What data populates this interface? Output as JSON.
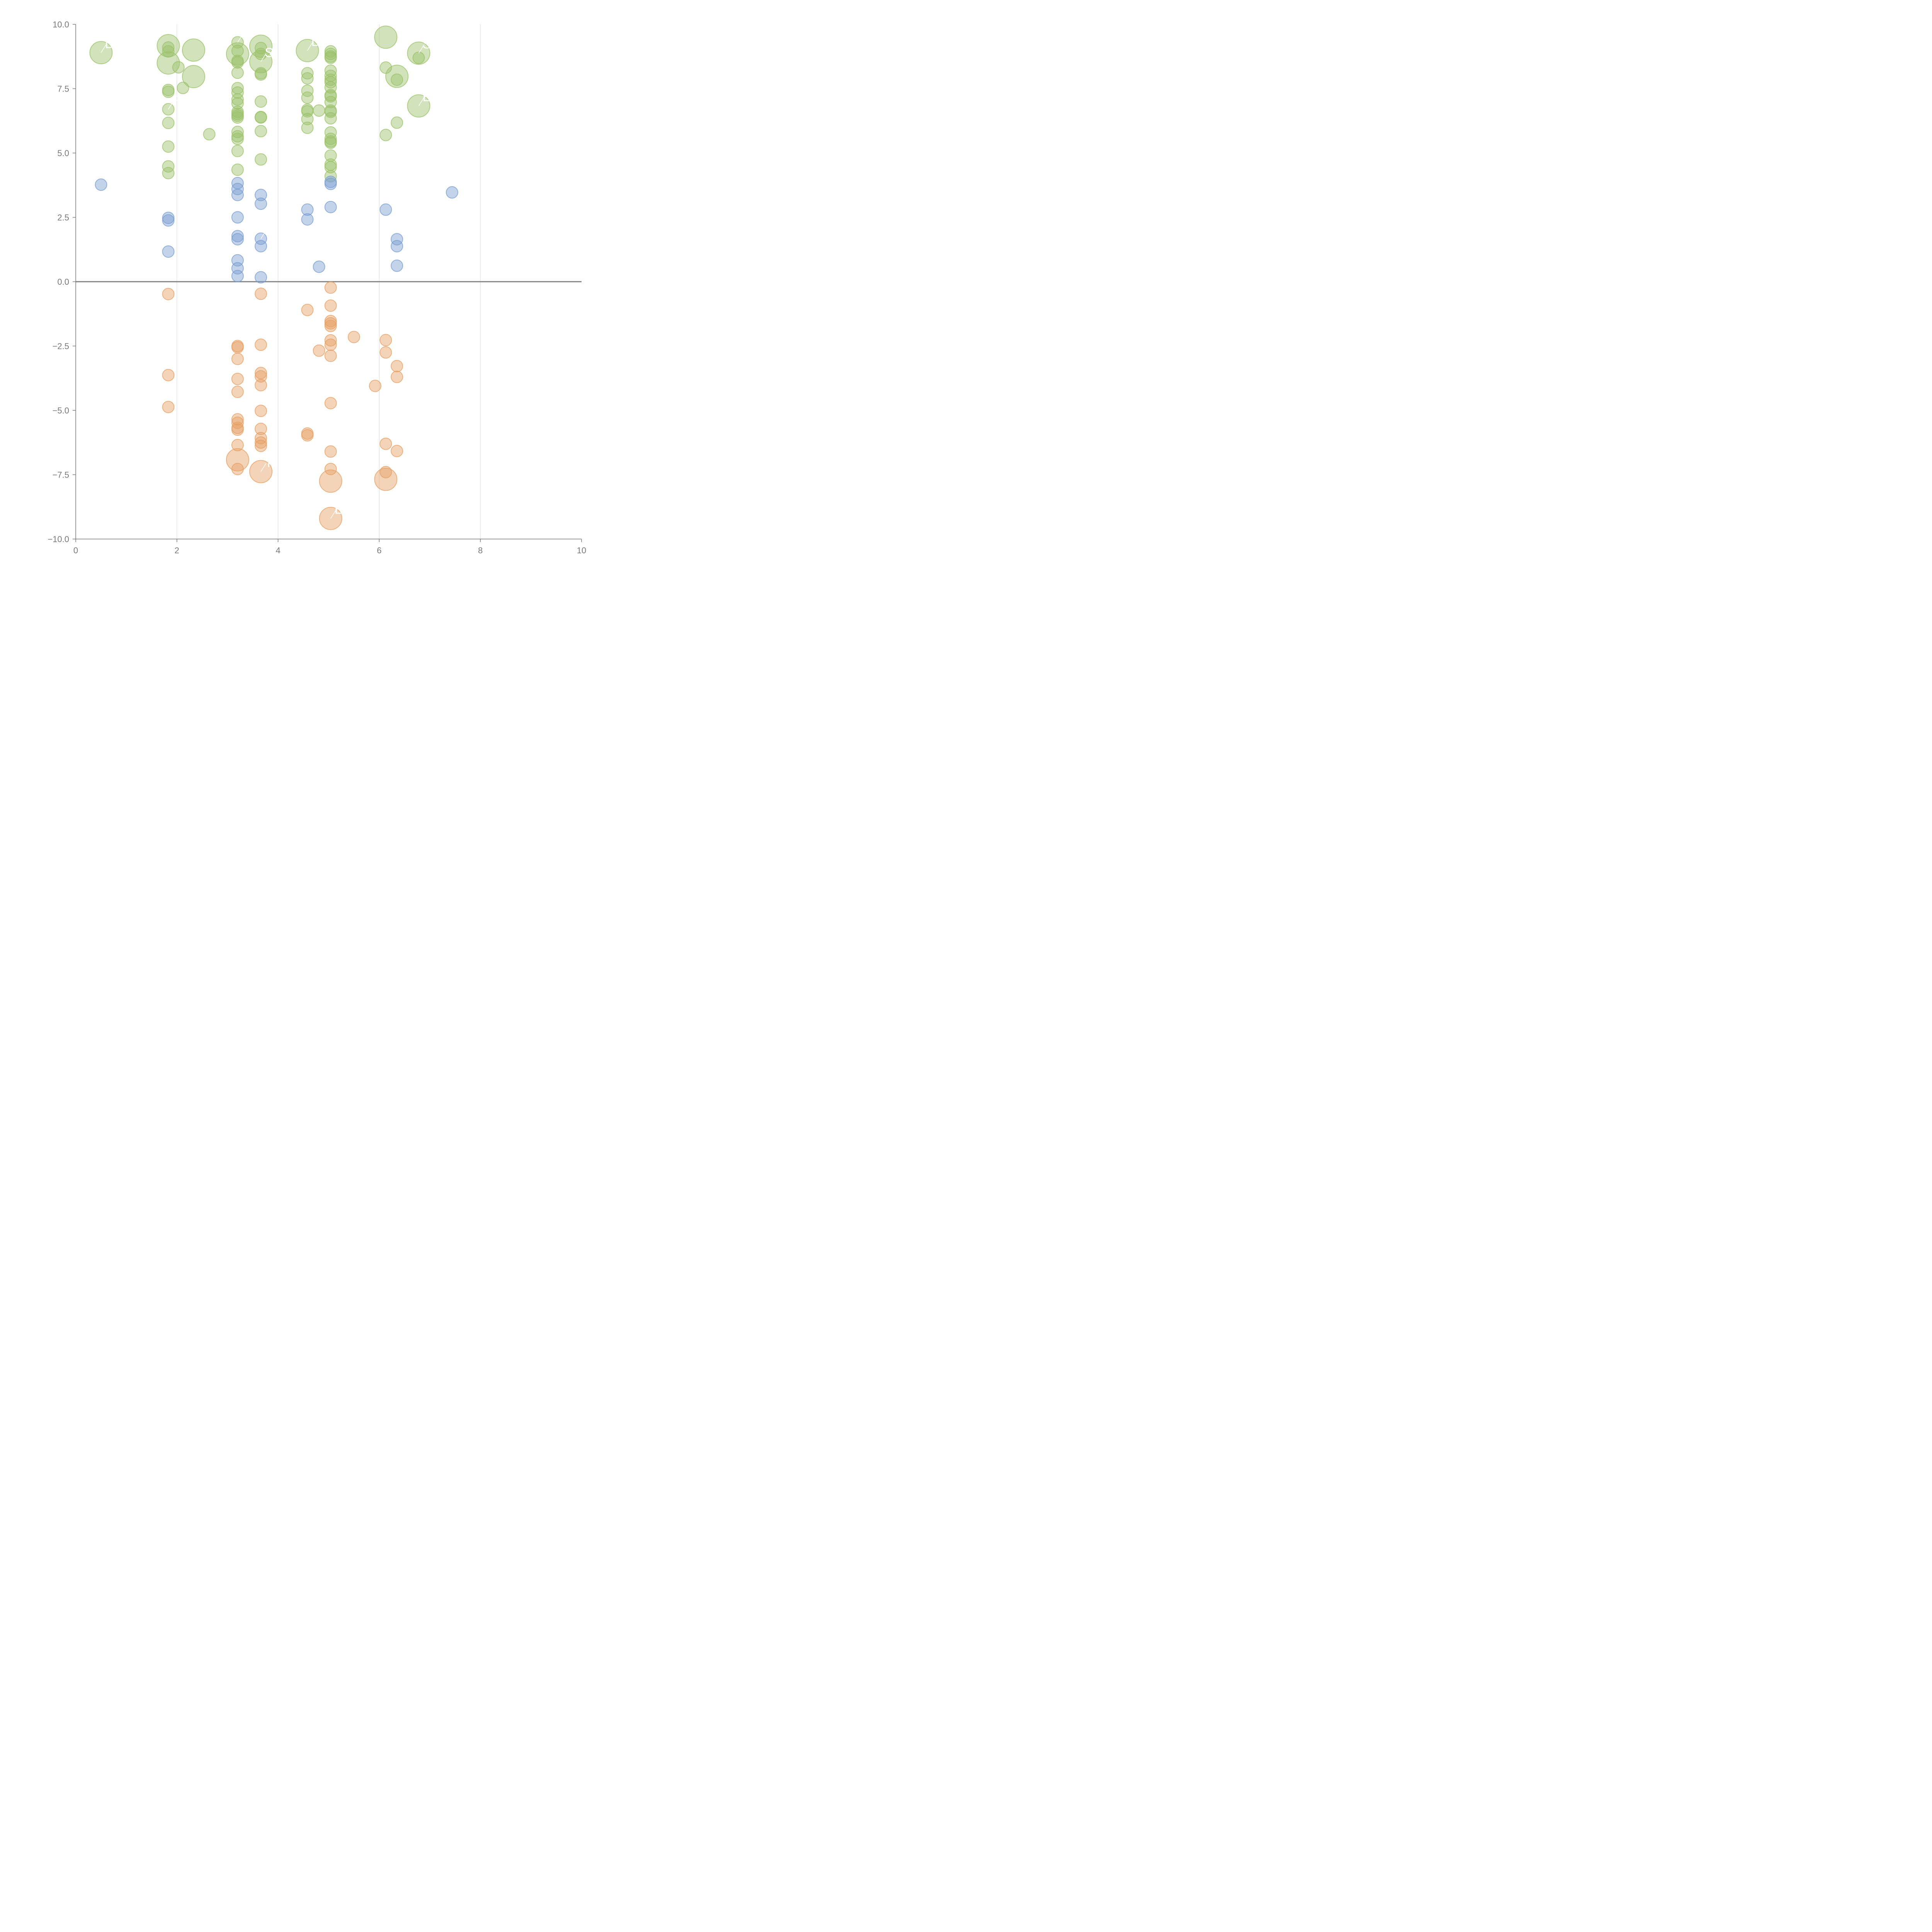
{
  "chart_data": {
    "type": "scatter",
    "title": "",
    "xlabel": "",
    "ylabel": "",
    "xlim": [
      0,
      10
    ],
    "ylim": [
      -10,
      10
    ],
    "grid": "vertical",
    "zero_line": true,
    "x_ticks": [
      0,
      2,
      4,
      6,
      8,
      10
    ],
    "x_tick_labels": [
      "0",
      "2",
      "4",
      "6",
      "8",
      "10"
    ],
    "y_ticks": [
      10,
      7.5,
      5,
      2.5,
      0,
      -2.5,
      -5,
      -7.5,
      -10
    ],
    "y_tick_labels": [
      "10.0",
      "7.5",
      "5.0",
      "2.5",
      "0.0",
      "−2.5",
      "−5.0",
      "−7.5",
      "−10.0"
    ],
    "colors": {
      "green": "#9bc16a",
      "blue": "#7a9dd0",
      "orange": "#e6a064"
    },
    "series": [
      {
        "name": "green",
        "color": "#9bc16a",
        "points": [
          {
            "x": 0.5,
            "y": 8.9,
            "s": "large",
            "label": "D"
          },
          {
            "x": 1.83,
            "y": 9.17,
            "s": "large"
          },
          {
            "x": 1.83,
            "y": 8.5,
            "s": "large"
          },
          {
            "x": 1.83,
            "y": 9.1
          },
          {
            "x": 1.83,
            "y": 8.95
          },
          {
            "x": 2.03,
            "y": 8.33
          },
          {
            "x": 2.33,
            "y": 9.0,
            "s": "large"
          },
          {
            "x": 2.33,
            "y": 7.97,
            "s": "large"
          },
          {
            "x": 1.83,
            "y": 7.45
          },
          {
            "x": 1.83,
            "y": 7.38
          },
          {
            "x": 2.12,
            "y": 7.53
          },
          {
            "x": 1.83,
            "y": 6.7,
            "label": "R"
          },
          {
            "x": 1.83,
            "y": 6.17
          },
          {
            "x": 1.83,
            "y": 5.25
          },
          {
            "x": 1.83,
            "y": 4.48
          },
          {
            "x": 1.83,
            "y": 4.22
          },
          {
            "x": 2.64,
            "y": 5.73
          },
          {
            "x": 3.2,
            "y": 9.3,
            "label": "R"
          },
          {
            "x": 3.2,
            "y": 8.85,
            "s": "large"
          },
          {
            "x": 3.2,
            "y": 8.97
          },
          {
            "x": 3.2,
            "y": 8.58
          },
          {
            "x": 3.2,
            "y": 8.52
          },
          {
            "x": 3.2,
            "y": 8.12
          },
          {
            "x": 3.2,
            "y": 7.52
          },
          {
            "x": 3.2,
            "y": 7.35
          },
          {
            "x": 3.2,
            "y": 7.08
          },
          {
            "x": 3.2,
            "y": 6.93
          },
          {
            "x": 3.2,
            "y": 6.6
          },
          {
            "x": 3.2,
            "y": 6.52
          },
          {
            "x": 3.2,
            "y": 6.45
          },
          {
            "x": 3.2,
            "y": 6.38
          },
          {
            "x": 3.2,
            "y": 5.82
          },
          {
            "x": 3.2,
            "y": 5.65
          },
          {
            "x": 3.2,
            "y": 5.55
          },
          {
            "x": 3.2,
            "y": 5.08
          },
          {
            "x": 3.2,
            "y": 4.35
          },
          {
            "x": 3.66,
            "y": 9.15,
            "s": "large"
          },
          {
            "x": 3.66,
            "y": 8.55,
            "s": "large",
            "label": "S"
          },
          {
            "x": 3.66,
            "y": 9.08
          },
          {
            "x": 3.66,
            "y": 8.85
          },
          {
            "x": 3.66,
            "y": 8.1
          },
          {
            "x": 3.66,
            "y": 8.05
          },
          {
            "x": 3.66,
            "y": 7.0
          },
          {
            "x": 3.66,
            "y": 6.4
          },
          {
            "x": 3.66,
            "y": 6.38
          },
          {
            "x": 3.66,
            "y": 5.85
          },
          {
            "x": 3.66,
            "y": 4.75
          },
          {
            "x": 4.58,
            "y": 8.98,
            "s": "large",
            "label": "D"
          },
          {
            "x": 4.58,
            "y": 8.1
          },
          {
            "x": 4.58,
            "y": 7.9
          },
          {
            "x": 4.58,
            "y": 7.42
          },
          {
            "x": 4.58,
            "y": 7.15
          },
          {
            "x": 4.58,
            "y": 6.68
          },
          {
            "x": 4.58,
            "y": 6.62
          },
          {
            "x": 4.58,
            "y": 6.32
          },
          {
            "x": 4.58,
            "y": 5.98
          },
          {
            "x": 4.81,
            "y": 6.65
          },
          {
            "x": 5.04,
            "y": 8.95
          },
          {
            "x": 5.04,
            "y": 8.85
          },
          {
            "x": 5.04,
            "y": 8.75
          },
          {
            "x": 5.04,
            "y": 8.7
          },
          {
            "x": 5.04,
            "y": 8.2
          },
          {
            "x": 5.04,
            "y": 8.0
          },
          {
            "x": 5.04,
            "y": 7.85
          },
          {
            "x": 5.04,
            "y": 7.75
          },
          {
            "x": 5.04,
            "y": 7.55
          },
          {
            "x": 5.04,
            "y": 7.25
          },
          {
            "x": 5.04,
            "y": 7.2
          },
          {
            "x": 5.04,
            "y": 6.98
          },
          {
            "x": 5.04,
            "y": 6.65
          },
          {
            "x": 5.04,
            "y": 6.6
          },
          {
            "x": 5.04,
            "y": 6.35
          },
          {
            "x": 5.04,
            "y": 5.8
          },
          {
            "x": 5.04,
            "y": 5.55
          },
          {
            "x": 5.04,
            "y": 5.45
          },
          {
            "x": 5.04,
            "y": 5.4
          },
          {
            "x": 5.04,
            "y": 4.9
          },
          {
            "x": 5.04,
            "y": 4.55
          },
          {
            "x": 5.04,
            "y": 4.45
          },
          {
            "x": 5.04,
            "y": 4.1
          },
          {
            "x": 6.13,
            "y": 9.5,
            "s": "large"
          },
          {
            "x": 6.13,
            "y": 8.32
          },
          {
            "x": 6.35,
            "y": 7.98,
            "s": "large"
          },
          {
            "x": 6.35,
            "y": 7.85
          },
          {
            "x": 6.35,
            "y": 6.18
          },
          {
            "x": 6.13,
            "y": 5.7
          },
          {
            "x": 6.78,
            "y": 8.88,
            "s": "large",
            "label": "S"
          },
          {
            "x": 6.78,
            "y": 8.7
          },
          {
            "x": 6.78,
            "y": 6.83,
            "s": "large",
            "label": "E"
          }
        ]
      },
      {
        "name": "blue",
        "color": "#7a9dd0",
        "points": [
          {
            "x": 0.5,
            "y": 3.77
          },
          {
            "x": 1.83,
            "y": 2.48
          },
          {
            "x": 1.83,
            "y": 2.38
          },
          {
            "x": 1.83,
            "y": 1.17
          },
          {
            "x": 3.2,
            "y": 3.83
          },
          {
            "x": 3.2,
            "y": 3.6
          },
          {
            "x": 3.2,
            "y": 3.37
          },
          {
            "x": 3.2,
            "y": 2.5
          },
          {
            "x": 3.2,
            "y": 1.77
          },
          {
            "x": 3.2,
            "y": 1.65
          },
          {
            "x": 3.2,
            "y": 0.83
          },
          {
            "x": 3.2,
            "y": 0.52
          },
          {
            "x": 3.2,
            "y": 0.22
          },
          {
            "x": 3.66,
            "y": 3.37
          },
          {
            "x": 3.66,
            "y": 3.03
          },
          {
            "x": 3.66,
            "y": 1.67,
            "label": "D"
          },
          {
            "x": 3.66,
            "y": 1.38
          },
          {
            "x": 3.66,
            "y": 0.17
          },
          {
            "x": 4.58,
            "y": 2.8
          },
          {
            "x": 4.58,
            "y": 2.42
          },
          {
            "x": 4.81,
            "y": 0.58
          },
          {
            "x": 5.04,
            "y": 3.88
          },
          {
            "x": 5.04,
            "y": 3.8
          },
          {
            "x": 5.04,
            "y": 2.9
          },
          {
            "x": 6.13,
            "y": 2.8
          },
          {
            "x": 6.35,
            "y": 1.65
          },
          {
            "x": 6.35,
            "y": 1.38
          },
          {
            "x": 6.35,
            "y": 0.62
          },
          {
            "x": 7.44,
            "y": 3.47
          }
        ]
      },
      {
        "name": "orange",
        "color": "#e6a064",
        "points": [
          {
            "x": 1.83,
            "y": -0.48
          },
          {
            "x": 1.83,
            "y": -3.63
          },
          {
            "x": 1.83,
            "y": -4.87
          },
          {
            "x": 3.2,
            "y": -2.5
          },
          {
            "x": 3.2,
            "y": -2.55
          },
          {
            "x": 3.2,
            "y": -3.0
          },
          {
            "x": 3.2,
            "y": -3.78
          },
          {
            "x": 3.2,
            "y": -4.28
          },
          {
            "x": 3.2,
            "y": -5.35
          },
          {
            "x": 3.2,
            "y": -5.48
          },
          {
            "x": 3.2,
            "y": -5.68
          },
          {
            "x": 3.2,
            "y": -5.75
          },
          {
            "x": 3.2,
            "y": -6.35
          },
          {
            "x": 3.2,
            "y": -6.92,
            "s": "large"
          },
          {
            "x": 3.2,
            "y": -7.28
          },
          {
            "x": 3.66,
            "y": -0.47
          },
          {
            "x": 3.66,
            "y": -2.45
          },
          {
            "x": 3.66,
            "y": -3.55
          },
          {
            "x": 3.66,
            "y": -3.68
          },
          {
            "x": 3.66,
            "y": -4.02
          },
          {
            "x": 3.66,
            "y": -5.02
          },
          {
            "x": 3.66,
            "y": -5.72
          },
          {
            "x": 3.66,
            "y": -6.08
          },
          {
            "x": 3.66,
            "y": -6.25
          },
          {
            "x": 3.66,
            "y": -6.38
          },
          {
            "x": 3.66,
            "y": -7.38,
            "s": "large",
            "label": "T"
          },
          {
            "x": 4.58,
            "y": -1.1
          },
          {
            "x": 4.58,
            "y": -5.9
          },
          {
            "x": 4.58,
            "y": -5.97
          },
          {
            "x": 4.81,
            "y": -2.68
          },
          {
            "x": 5.04,
            "y": -0.23
          },
          {
            "x": 5.04,
            "y": -0.93
          },
          {
            "x": 5.04,
            "y": -1.53
          },
          {
            "x": 5.04,
            "y": -1.62
          },
          {
            "x": 5.04,
            "y": -1.72
          },
          {
            "x": 5.04,
            "y": -2.28
          },
          {
            "x": 5.04,
            "y": -2.45
          },
          {
            "x": 5.04,
            "y": -2.88
          },
          {
            "x": 5.04,
            "y": -4.72
          },
          {
            "x": 5.04,
            "y": -6.6
          },
          {
            "x": 5.04,
            "y": -7.28
          },
          {
            "x": 5.04,
            "y": -7.75,
            "s": "large"
          },
          {
            "x": 5.04,
            "y": -9.2,
            "s": "large",
            "label": "E"
          },
          {
            "x": 5.5,
            "y": -2.15
          },
          {
            "x": 5.92,
            "y": -4.05
          },
          {
            "x": 6.13,
            "y": -2.27
          },
          {
            "x": 6.13,
            "y": -2.75
          },
          {
            "x": 6.13,
            "y": -6.3
          },
          {
            "x": 6.13,
            "y": -7.4
          },
          {
            "x": 6.13,
            "y": -7.68,
            "s": "large"
          },
          {
            "x": 6.35,
            "y": -3.28
          },
          {
            "x": 6.35,
            "y": -3.7
          },
          {
            "x": 6.35,
            "y": -6.58
          }
        ]
      }
    ]
  }
}
